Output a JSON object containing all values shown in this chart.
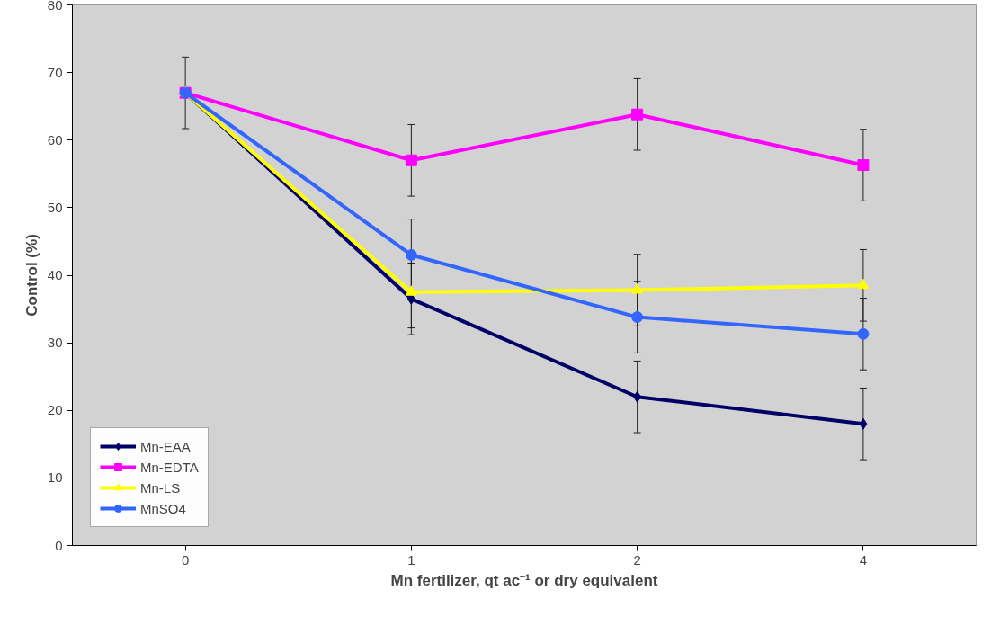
{
  "chart_data": {
    "type": "line",
    "xlabel": "Mn fertilizer, qt ac⁻¹ or dry equivalent",
    "ylabel": "Control (%)",
    "categories": [
      "0",
      "1",
      "2",
      "4"
    ],
    "series": [
      {
        "name": "Mn-EAA",
        "color": "#000066",
        "marker": "diamond",
        "values": [
          67,
          36.5,
          22,
          18
        ],
        "errors": [
          null,
          5.3,
          5.3,
          5.3
        ]
      },
      {
        "name": "Mn-EDTA",
        "color": "#ff00ff",
        "marker": "square",
        "values": [
          67,
          57,
          63.8,
          56.3
        ],
        "errors": [
          null,
          5.3,
          5.3,
          5.3
        ]
      },
      {
        "name": "Mn-LS",
        "color": "#ffff00",
        "marker": "triangle",
        "values": [
          67,
          37.5,
          37.8,
          38.5
        ],
        "errors": [
          null,
          5.3,
          5.3,
          5.3
        ]
      },
      {
        "name": "MnSO4",
        "color": "#3366ff",
        "marker": "circle",
        "values": [
          67,
          43,
          33.8,
          31.3
        ],
        "errors": [
          5.3,
          5.3,
          5.3,
          5.3
        ]
      }
    ],
    "ylim": [
      0,
      80
    ],
    "yticks": [
      0,
      10,
      20,
      30,
      40,
      50,
      60,
      70,
      80
    ],
    "legend": "bottom left",
    "line_style": "solid"
  }
}
